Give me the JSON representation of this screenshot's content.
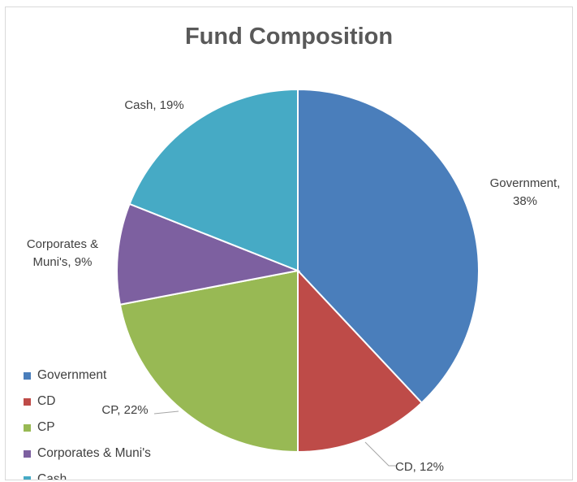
{
  "chart_data": {
    "type": "pie",
    "title": "Fund Composition",
    "categories": [
      "Government",
      "CD",
      "CP",
      "Corporates & Muni's",
      "Cash"
    ],
    "values": [
      38,
      12,
      22,
      9,
      19
    ],
    "colors": [
      "#4a7ebb",
      "#be4b48",
      "#98b954",
      "#7d60a0",
      "#46aac5"
    ],
    "data_labels": [
      [
        "Government,",
        "38%"
      ],
      [
        "CD, 12%"
      ],
      [
        "CP, 22%"
      ],
      [
        "Corporates &",
        "Muni's, 9%"
      ],
      [
        "Cash, 19%"
      ]
    ],
    "legend_position": "bottom-left"
  }
}
